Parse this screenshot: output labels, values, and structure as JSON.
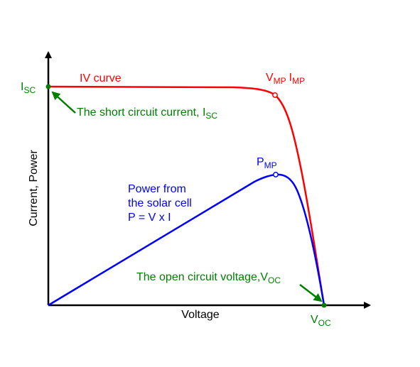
{
  "labels": {
    "y_axis": "Current, Power",
    "x_axis": "Voltage",
    "isc_main": "I",
    "isc_sub": "SC",
    "iv_curve": "IV curve",
    "vmp_main": "V",
    "vmp_sub": "MP",
    "imp_main": "I",
    "imp_sub": "MP",
    "short_circuit_main": "The short circuit current, I",
    "short_circuit_sub": "SC",
    "pmp_main": "P",
    "pmp_sub": "MP",
    "power_line1": "Power from",
    "power_line2": "the solar cell",
    "power_line3": "P = V x I",
    "open_circuit_main": "The open circuit voltage,V",
    "open_circuit_sub": "OC",
    "voc_main": "V",
    "voc_sub": "OC"
  },
  "colors": {
    "iv_curve": "#ff0000",
    "power_curve": "#0000ff",
    "annotation": "#008000",
    "axes": "#000000"
  }
}
